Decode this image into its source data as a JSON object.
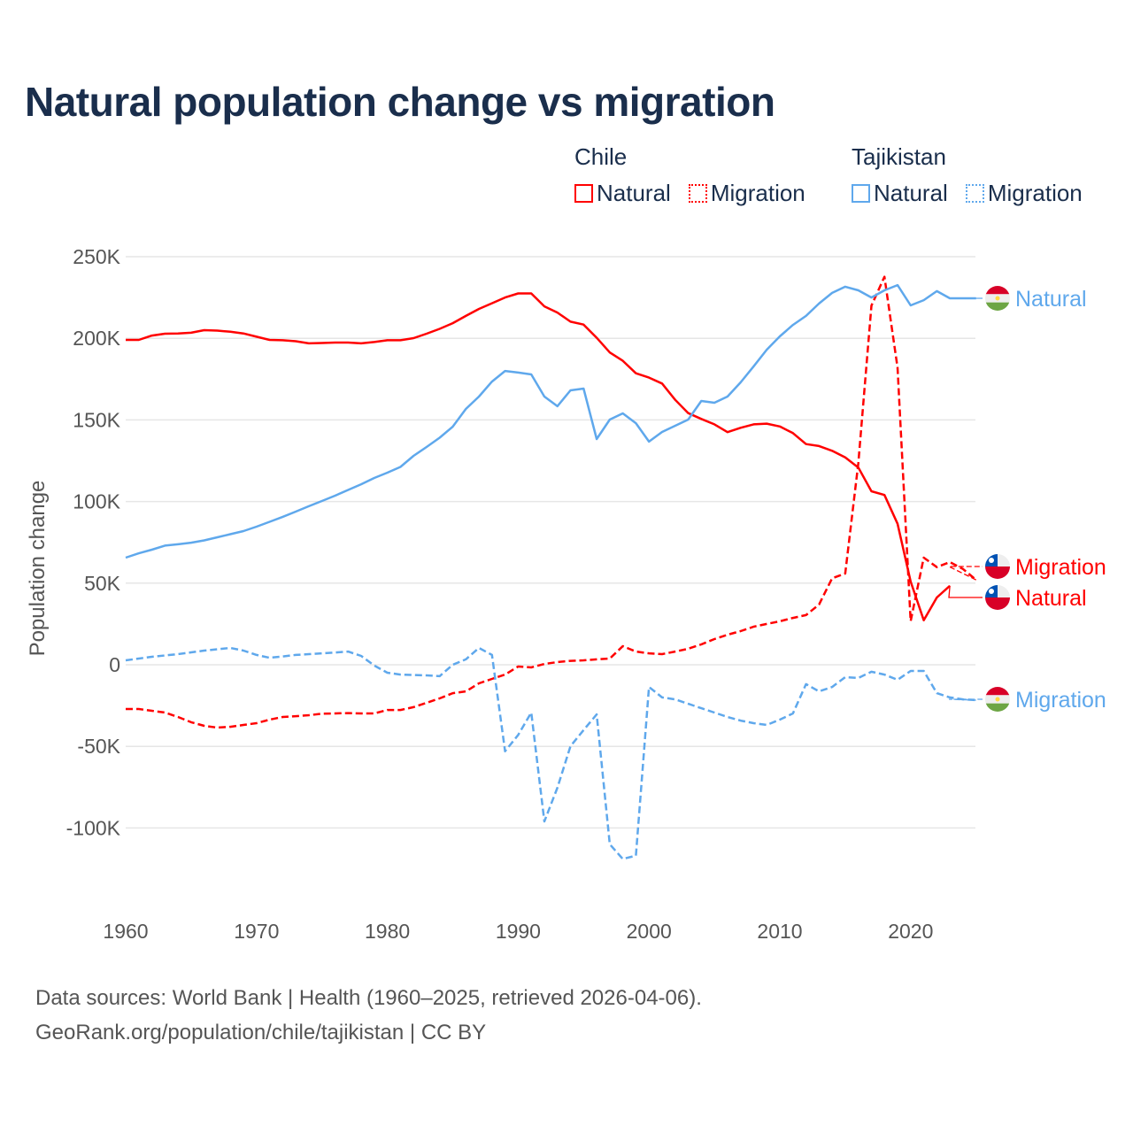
{
  "title": "Natural population change vs migration",
  "legend": [
    {
      "group": "Chile",
      "items": [
        {
          "label": "Natural",
          "style": "solid",
          "color": "#ff0000"
        },
        {
          "label": "Migration",
          "style": "dotted",
          "color": "#ff0000"
        }
      ]
    },
    {
      "group": "Tajikistan",
      "items": [
        {
          "label": "Natural",
          "style": "solid",
          "color": "#5fa8ec"
        },
        {
          "label": "Migration",
          "style": "dotted",
          "color": "#5fa8ec"
        }
      ]
    }
  ],
  "footer": {
    "line1": "Data sources: World Bank | Health (1960–2025, retrieved 2026-04-06).",
    "line2": "GeoRank.org/population/chile/tajikistan | CC BY"
  },
  "chart_data": {
    "type": "line",
    "title": "Natural population change vs migration",
    "xlabel": "",
    "ylabel": "Population change",
    "xlim": [
      1960,
      2025
    ],
    "ylim": [
      -140000,
      260000
    ],
    "x_ticks": [
      1960,
      1970,
      1980,
      1990,
      2000,
      2010,
      2020
    ],
    "x_tick_labels": [
      "1960",
      "1970",
      "1980",
      "1990",
      "2000",
      "2010",
      "2020"
    ],
    "y_ticks": [
      250000,
      200000,
      150000,
      100000,
      50000,
      0,
      -50000,
      -100000
    ],
    "y_tick_labels": [
      "250K",
      "200K",
      "150K",
      "100K",
      "50K",
      "0",
      "-50K",
      "-100K"
    ],
    "grid": true,
    "legend_position": "top-right",
    "x_start": 1960,
    "series": [
      {
        "name": "Chile Natural",
        "country": "Chile",
        "end_label": "Natural",
        "color": "#ff0000",
        "dash": "solid",
        "values": [
          199,
          199,
          201.7,
          202.8,
          203,
          203.4,
          205,
          204.7,
          204,
          203,
          201,
          199,
          198.8,
          198.2,
          196.9,
          197.1,
          197.4,
          197.4,
          196.9,
          197.7,
          198.8,
          198.8,
          200.1,
          202.8,
          205.8,
          209.3,
          213.7,
          218,
          221.5,
          225,
          227.5,
          227.5,
          219.6,
          215.8,
          210.2,
          208.4,
          200.3,
          191.3,
          186.2,
          178.6,
          175.9,
          172.3,
          162.3,
          154.2,
          150.6,
          147.3,
          142.5,
          145.2,
          147.3,
          147.7,
          146,
          141.9,
          135.2,
          134,
          131.1,
          127,
          120.8,
          106.3,
          104,
          86.4,
          51,
          27.3,
          41.2,
          48.4
        ]
      },
      {
        "name": "Chile Migration",
        "country": "Chile",
        "end_label": "Migration",
        "color": "#ff0000",
        "dash": "dashed",
        "values": [
          -27.1,
          -27.1,
          -28.2,
          -29.3,
          -32,
          -35.2,
          -37.4,
          -38.5,
          -38,
          -36.9,
          -35.8,
          -33.6,
          -32,
          -31.5,
          -30.9,
          -30,
          -29.8,
          -29.6,
          -29.8,
          -29.8,
          -27.7,
          -27.7,
          -26,
          -23.3,
          -20.6,
          -17.4,
          -16.3,
          -11.4,
          -8.7,
          -6,
          -1.1,
          -1.6,
          0.5,
          1.6,
          2.4,
          2.7,
          3.3,
          3.8,
          11.4,
          8.1,
          7,
          6.5,
          8.1,
          9.8,
          12.5,
          15.7,
          18.4,
          20.6,
          23.3,
          25,
          26.6,
          28.7,
          30.4,
          36.9,
          53,
          55.9,
          123.6,
          220,
          237.7,
          182,
          26.7,
          65.6,
          59.8,
          62.9,
          58.7,
          52
        ]
      },
      {
        "name": "Tajikistan Natural",
        "country": "Tajikistan",
        "end_label": "Natural",
        "color": "#5fa8ec",
        "dash": "solid",
        "values": [
          65.6,
          68.3,
          70.5,
          73,
          73.8,
          74.8,
          76.2,
          78.1,
          80,
          81.9,
          84.6,
          87.6,
          90.6,
          93.8,
          97.1,
          100.3,
          103.6,
          107.1,
          110.6,
          114.4,
          117.7,
          121.2,
          128,
          133.4,
          139.1,
          145.9,
          156.7,
          164.3,
          173.5,
          180,
          179,
          177.9,
          164.3,
          158.4,
          168.1,
          169.2,
          138.3,
          150.2,
          154,
          148,
          136.7,
          142.6,
          146.4,
          150.2,
          161.6,
          160.5,
          164.3,
          173,
          182.8,
          193,
          201.2,
          208.2,
          213.7,
          221.3,
          227.8,
          231.6,
          229.4,
          225,
          229.4,
          232.6,
          220.2,
          223.4,
          228.9,
          224.5,
          224.5,
          224.5
        ]
      },
      {
        "name": "Tajikistan Migration",
        "country": "Tajikistan",
        "end_label": "Migration",
        "color": "#5fa8ec",
        "dash": "dashed",
        "values": [
          2.7,
          3.8,
          4.9,
          5.7,
          6.5,
          7.6,
          8.7,
          9.5,
          10.3,
          8.7,
          6,
          4.3,
          5.1,
          6,
          6.5,
          7,
          7.5,
          8.1,
          5.4,
          -0.5,
          -4.9,
          -6,
          -6.3,
          -6.5,
          -7,
          0,
          3.3,
          10.3,
          6,
          -53,
          -43,
          -29.3,
          -96,
          -75.4,
          -49.9,
          -40,
          -30.4,
          -110,
          -119,
          -117,
          -13.6,
          -20,
          -21.2,
          -23.9,
          -26.6,
          -29.3,
          -32,
          -34.2,
          -35.8,
          -36.9,
          -33.6,
          -29.8,
          -11.9,
          -16.3,
          -13.6,
          -7.6,
          -8.1,
          -4.3,
          -6,
          -9.2,
          -3.8,
          -3.8,
          -17.4,
          -20,
          -21.2,
          -21.7
        ]
      }
    ],
    "value_unit": "thousands"
  }
}
